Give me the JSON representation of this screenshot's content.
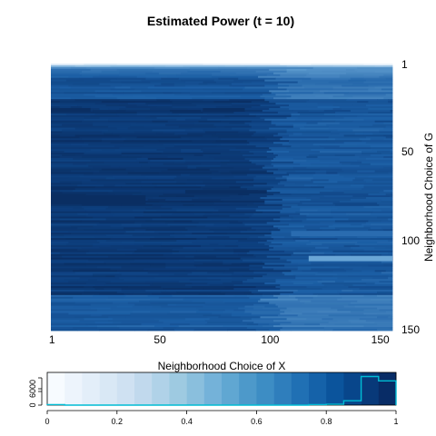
{
  "chart_data": [
    {
      "type": "heatmap",
      "title": "Estimated Power (t = 10)",
      "xlabel": "Neighborhood Choice of X",
      "ylabel": "Neighborhood Choice of G",
      "xlim": [
        1,
        155
      ],
      "ylim": [
        1,
        150
      ],
      "x_ticks": [
        "1",
        "50",
        "100",
        "150"
      ],
      "y_ticks": [
        "1",
        "50",
        "100",
        "150"
      ],
      "y_axis_side": "right",
      "y_axis_reversed": true,
      "value_range": [
        0,
        1
      ],
      "summary": "power values mostly between about 0.75 and 1.0; lighter top rows (G near 1) and a lighter vertical band around X 105-155; darkest region G 20-130, X 1-100"
    },
    {
      "type": "histogram",
      "title": "",
      "xlabel": "",
      "ylabel": "",
      "x_ticks": [
        "0",
        "0.2",
        "0.4",
        "0.6",
        "0.8",
        "1"
      ],
      "y_ticks": [
        "0",
        "6000"
      ],
      "xlim": [
        0,
        1
      ],
      "ylim": [
        0,
        12000
      ],
      "bin_width": 0.05,
      "bin_edges": [
        0,
        0.05,
        0.1,
        0.15,
        0.2,
        0.25,
        0.3,
        0.35,
        0.4,
        0.45,
        0.5,
        0.55,
        0.6,
        0.65,
        0.7,
        0.75,
        0.8,
        0.85,
        0.9,
        0.95,
        1
      ],
      "counts": [
        200,
        0,
        0,
        0,
        0,
        0,
        0,
        0,
        0,
        0,
        0,
        0,
        0,
        0,
        0,
        200,
        300,
        1600,
        10500,
        8900
      ],
      "colorbar_colors": [
        "#f7fbff",
        "#edf4fc",
        "#e3eef9",
        "#d9e8f5",
        "#cfe1f2",
        "#c1d9ed",
        "#b0d2e8",
        "#9ecae1",
        "#8abfdd",
        "#74b2d9",
        "#60a7d2",
        "#4d99ca",
        "#3d8dc4",
        "#2f7ebc",
        "#2070b4",
        "#1562a9",
        "#0b549c",
        "#08468b",
        "#083979",
        "#082c66"
      ],
      "line_color": "#00bcd4"
    }
  ],
  "colors": {
    "heat_lightest": "#eaf3fb",
    "heat_light": "#6aa6d6",
    "heat_mid": "#1c5fa5",
    "heat_dark": "#0d3f7e",
    "heat_darkest": "#0a2e62"
  }
}
